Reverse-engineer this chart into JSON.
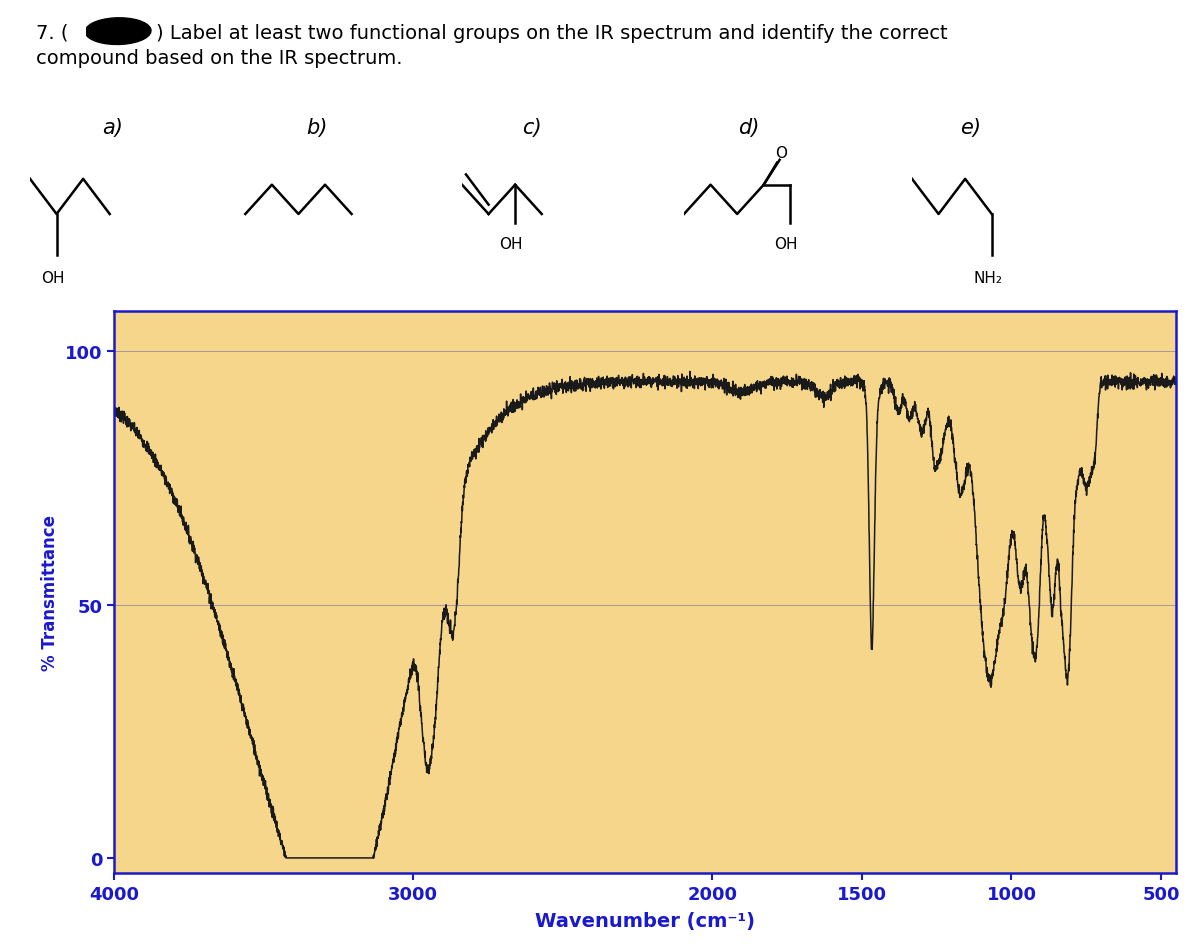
{
  "title_line1": "7. (",
  "title_line1b": ") Label at least two functional groups on the IR spectrum and identify the correct",
  "title_line2": "compound based on the IR spectrum.",
  "options": [
    "a)",
    "b)",
    "c)",
    "d)",
    "e)"
  ],
  "xlabel": "Wavenumber (cm⁻¹)",
  "ylabel": "% Transmittance",
  "yticks": [
    0,
    50,
    100
  ],
  "xtick_labels": [
    "4000",
    "3000",
    "2000",
    "1500",
    "1000",
    "500"
  ],
  "xtick_vals": [
    4000,
    3000,
    2000,
    1500,
    1000,
    500
  ],
  "xlim_left": 4000,
  "xlim_right": 450,
  "ylim_bottom": -3,
  "ylim_top": 108,
  "bg_color": "#F5D68A",
  "line_color": "#1a1a1a",
  "axis_label_color": "#1a1aCC",
  "tick_color": "#1a1aCC",
  "spine_color": "#1a1aCC"
}
